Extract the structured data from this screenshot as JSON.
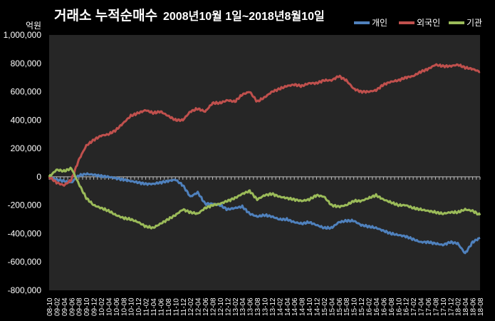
{
  "chart_data": {
    "type": "line",
    "title": "거래소 누적순매수",
    "subtitle": "2008년10월 1일~2018년8월10일",
    "ylabel": "억원",
    "xlabel": "",
    "ylim": [
      -800000,
      1000000
    ],
    "yticks": [
      "1,000,000",
      "800,000",
      "600,000",
      "400,000",
      "200,000",
      "0",
      "-200,000",
      "-400,000",
      "-600,000",
      "-800,000"
    ],
    "ytick_values": [
      1000000,
      800000,
      600000,
      400000,
      200000,
      0,
      -200000,
      -400000,
      -600000,
      -800000
    ],
    "categories": [
      "08-10",
      "09-02",
      "09-04",
      "09-06",
      "09-08",
      "09-10",
      "09-12",
      "10-02",
      "10-04",
      "10-06",
      "10-08",
      "10-10",
      "10-12",
      "11-02",
      "11-04",
      "11-06",
      "11-08",
      "11-10",
      "11-12",
      "12-02",
      "12-04",
      "12-06",
      "12-08",
      "12-10",
      "12-12",
      "13-02",
      "13-04",
      "13-06",
      "13-08",
      "13-10",
      "13-12",
      "14-02",
      "14-04",
      "14-06",
      "14-08",
      "14-10",
      "14-12",
      "15-02",
      "15-04",
      "15-06",
      "15-08",
      "15-10",
      "15-12",
      "16-02",
      "16-04",
      "16-06",
      "16-08",
      "16-10",
      "16-12",
      "17-02",
      "17-04",
      "17-06",
      "17-08",
      "17-10",
      "17-12",
      "18-02",
      "18-04",
      "18-06",
      "18-08"
    ],
    "legend_position": "top-right",
    "grid": false,
    "series": [
      {
        "name": "개인",
        "color": "#4f81bd",
        "values": [
          0,
          -20000,
          -30000,
          -40000,
          10000,
          20000,
          15000,
          5000,
          0,
          -10000,
          -20000,
          -30000,
          -40000,
          -50000,
          -50000,
          -40000,
          -30000,
          -20000,
          -60000,
          -140000,
          -110000,
          -190000,
          -190000,
          -200000,
          -230000,
          -220000,
          -210000,
          -260000,
          -280000,
          -270000,
          -280000,
          -300000,
          -300000,
          -320000,
          -330000,
          -320000,
          -340000,
          -360000,
          -360000,
          -320000,
          -310000,
          -310000,
          -340000,
          -350000,
          -360000,
          -380000,
          -400000,
          -410000,
          -420000,
          -440000,
          -460000,
          -460000,
          -470000,
          -480000,
          -460000,
          -470000,
          -540000,
          -460000,
          -430000
        ]
      },
      {
        "name": "외국인",
        "color": "#c0504d",
        "values": [
          0,
          -40000,
          -60000,
          -20000,
          120000,
          220000,
          260000,
          290000,
          300000,
          330000,
          380000,
          430000,
          450000,
          470000,
          450000,
          460000,
          430000,
          400000,
          400000,
          460000,
          480000,
          460000,
          520000,
          520000,
          540000,
          530000,
          580000,
          600000,
          530000,
          560000,
          600000,
          620000,
          640000,
          650000,
          640000,
          660000,
          660000,
          680000,
          680000,
          710000,
          680000,
          620000,
          600000,
          600000,
          610000,
          650000,
          670000,
          680000,
          700000,
          710000,
          740000,
          760000,
          790000,
          780000,
          780000,
          790000,
          770000,
          760000,
          740000
        ]
      },
      {
        "name": "기관",
        "color": "#9bbb59",
        "values": [
          0,
          50000,
          40000,
          60000,
          -50000,
          -150000,
          -200000,
          -220000,
          -240000,
          -270000,
          -290000,
          -300000,
          -320000,
          -350000,
          -360000,
          -330000,
          -300000,
          -270000,
          -230000,
          -250000,
          -260000,
          -220000,
          -200000,
          -190000,
          -170000,
          -150000,
          -120000,
          -100000,
          -160000,
          -130000,
          -120000,
          -140000,
          -150000,
          -160000,
          -170000,
          -160000,
          -130000,
          -140000,
          -200000,
          -210000,
          -200000,
          -170000,
          -170000,
          -150000,
          -130000,
          -160000,
          -180000,
          -200000,
          -200000,
          -220000,
          -230000,
          -240000,
          -250000,
          -260000,
          -250000,
          -250000,
          -230000,
          -240000,
          -270000
        ]
      }
    ]
  }
}
